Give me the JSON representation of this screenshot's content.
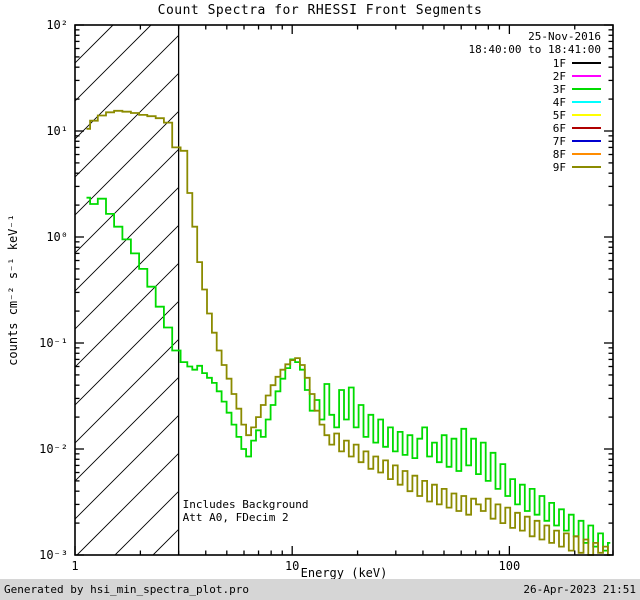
{
  "title": "Count Spectra for RHESSI Front Segments",
  "footer": {
    "left": "Generated by hsi_min_spectra_plot.pro",
    "right": "26-Apr-2023 21:51"
  },
  "chart_data": {
    "type": "line",
    "line_style": "histogram-step",
    "title": "Count Spectra for RHESSI Front Segments",
    "xlabel": "Energy (keV)",
    "ylabel": "counts cm⁻² s⁻¹ keV⁻¹",
    "xscale": "log",
    "yscale": "log",
    "xlim": [
      1,
      300
    ],
    "ylim": [
      0.001,
      100
    ],
    "grid": false,
    "date_line1": "25-Nov-2016",
    "date_line2": "18:40:00 to 18:41:00",
    "date_color": "#8b8b00",
    "annotations": [
      "Includes Background",
      "Att A0, FDecim 2"
    ],
    "hatch_region": {
      "from": 1,
      "to": 3
    },
    "x_axis": {
      "label": "Energy (keV)",
      "ticks": [
        {
          "v": 1,
          "label": "1"
        },
        {
          "v": 10,
          "label": "10"
        },
        {
          "v": 100,
          "label": "100"
        }
      ]
    },
    "y_axis": {
      "label": "counts cm⁻² s⁻¹ keV⁻¹",
      "ticks": [
        {
          "v": 100,
          "label": "10²"
        },
        {
          "v": 10,
          "label": "10¹"
        },
        {
          "v": 1,
          "label": "10⁰"
        },
        {
          "v": 0.1,
          "label": "10⁻¹"
        },
        {
          "v": 0.01,
          "label": "10⁻²"
        },
        {
          "v": 0.001,
          "label": "10⁻³"
        }
      ]
    },
    "legend": [
      {
        "label": "1F",
        "color": "#000000"
      },
      {
        "label": "2F",
        "color": "#ff00ff"
      },
      {
        "label": "3F",
        "color": "#00db00"
      },
      {
        "label": "4F",
        "color": "#00ffff"
      },
      {
        "label": "5F",
        "color": "#ffff00"
      },
      {
        "label": "6F",
        "color": "#b00000"
      },
      {
        "label": "7F",
        "color": "#0000d0"
      },
      {
        "label": "8F",
        "color": "#ff8c00"
      },
      {
        "label": "9F",
        "color": "#8b8b00"
      }
    ],
    "series": [
      {
        "name": "3F",
        "color": "#00db00",
        "points": [
          [
            1.13,
            2.35
          ],
          [
            1.22,
            2.05
          ],
          [
            1.33,
            2.3
          ],
          [
            1.45,
            1.65
          ],
          [
            1.58,
            1.25
          ],
          [
            1.73,
            0.95
          ],
          [
            1.89,
            0.7
          ],
          [
            2.06,
            0.5
          ],
          [
            2.25,
            0.34
          ],
          [
            2.46,
            0.22
          ],
          [
            2.68,
            0.14
          ],
          [
            2.93,
            0.085
          ],
          [
            3.2,
            0.066
          ],
          [
            3.38,
            0.06
          ],
          [
            3.56,
            0.056
          ],
          [
            3.75,
            0.061
          ],
          [
            3.95,
            0.052
          ],
          [
            4.16,
            0.047
          ],
          [
            4.38,
            0.042
          ],
          [
            4.61,
            0.035
          ],
          [
            4.86,
            0.028
          ],
          [
            5.12,
            0.022
          ],
          [
            5.39,
            0.017
          ],
          [
            5.68,
            0.013
          ],
          [
            5.98,
            0.01
          ],
          [
            6.3,
            0.0085
          ],
          [
            6.64,
            0.012
          ],
          [
            6.99,
            0.015
          ],
          [
            7.36,
            0.013
          ],
          [
            7.75,
            0.019
          ],
          [
            8.16,
            0.026
          ],
          [
            8.6,
            0.035
          ],
          [
            9.06,
            0.046
          ],
          [
            9.54,
            0.058
          ],
          [
            10.05,
            0.07
          ],
          [
            10.58,
            0.066
          ],
          [
            11.14,
            0.056
          ],
          [
            11.74,
            0.036
          ],
          [
            12.36,
            0.023
          ],
          [
            13.02,
            0.029
          ],
          [
            13.71,
            0.019
          ],
          [
            14.44,
            0.041
          ],
          [
            15.21,
            0.021
          ],
          [
            16.02,
            0.016
          ],
          [
            16.87,
            0.036
          ],
          [
            17.77,
            0.019
          ],
          [
            18.71,
            0.038
          ],
          [
            19.71,
            0.016
          ],
          [
            20.76,
            0.026
          ],
          [
            21.86,
            0.013
          ],
          [
            23.02,
            0.021
          ],
          [
            24.25,
            0.0115
          ],
          [
            25.54,
            0.019
          ],
          [
            26.9,
            0.0105
          ],
          [
            28.33,
            0.016
          ],
          [
            29.84,
            0.0095
          ],
          [
            31.42,
            0.0145
          ],
          [
            33.1,
            0.0088
          ],
          [
            34.86,
            0.0135
          ],
          [
            36.71,
            0.0082
          ],
          [
            38.67,
            0.0125
          ],
          [
            40.72,
            0.016
          ],
          [
            42.89,
            0.0085
          ],
          [
            45.17,
            0.0115
          ],
          [
            47.57,
            0.0075
          ],
          [
            50.1,
            0.0135
          ],
          [
            52.77,
            0.0068
          ],
          [
            55.57,
            0.0125
          ],
          [
            58.53,
            0.0062
          ],
          [
            61.64,
            0.0155
          ],
          [
            64.92,
            0.007
          ],
          [
            68.37,
            0.0125
          ],
          [
            72.01,
            0.0058
          ],
          [
            75.84,
            0.0115
          ],
          [
            79.87,
            0.005
          ],
          [
            84.12,
            0.0092
          ],
          [
            88.6,
            0.0042
          ],
          [
            93.31,
            0.0072
          ],
          [
            98.27,
            0.0036
          ],
          [
            103.5,
            0.0052
          ],
          [
            109.0,
            0.003
          ],
          [
            114.8,
            0.0046
          ],
          [
            120.9,
            0.0026
          ],
          [
            127.3,
            0.0042
          ],
          [
            134.1,
            0.0024
          ],
          [
            141.2,
            0.0036
          ],
          [
            148.7,
            0.0021
          ],
          [
            156.6,
            0.0031
          ],
          [
            164.9,
            0.0019
          ],
          [
            173.7,
            0.0027
          ],
          [
            182.9,
            0.0017
          ],
          [
            192.7,
            0.0024
          ],
          [
            202.9,
            0.0015
          ],
          [
            213.7,
            0.0021
          ],
          [
            225.1,
            0.0013
          ],
          [
            237.0,
            0.0019
          ],
          [
            249.6,
            0.0012
          ],
          [
            262.9,
            0.0016
          ],
          [
            276.9,
            0.0011
          ],
          [
            291.6,
            0.0013
          ]
        ]
      },
      {
        "name": "9F",
        "color": "#8b8b00",
        "points": [
          [
            1.13,
            10.5
          ],
          [
            1.22,
            12.5
          ],
          [
            1.33,
            14.0
          ],
          [
            1.45,
            15.0
          ],
          [
            1.58,
            15.5
          ],
          [
            1.73,
            15.2
          ],
          [
            1.89,
            14.8
          ],
          [
            2.06,
            14.2
          ],
          [
            2.25,
            13.8
          ],
          [
            2.46,
            13.2
          ],
          [
            2.68,
            12.0
          ],
          [
            2.93,
            7.0
          ],
          [
            3.2,
            6.5
          ],
          [
            3.38,
            2.6
          ],
          [
            3.56,
            1.25
          ],
          [
            3.75,
            0.58
          ],
          [
            3.95,
            0.32
          ],
          [
            4.16,
            0.19
          ],
          [
            4.38,
            0.125
          ],
          [
            4.61,
            0.085
          ],
          [
            4.86,
            0.062
          ],
          [
            5.12,
            0.046
          ],
          [
            5.39,
            0.033
          ],
          [
            5.68,
            0.024
          ],
          [
            5.98,
            0.017
          ],
          [
            6.3,
            0.0135
          ],
          [
            6.64,
            0.016
          ],
          [
            6.99,
            0.02
          ],
          [
            7.36,
            0.026
          ],
          [
            7.75,
            0.032
          ],
          [
            8.16,
            0.04
          ],
          [
            8.6,
            0.048
          ],
          [
            9.06,
            0.056
          ],
          [
            9.54,
            0.063
          ],
          [
            10.05,
            0.069
          ],
          [
            10.58,
            0.072
          ],
          [
            11.14,
            0.062
          ],
          [
            11.74,
            0.047
          ],
          [
            12.36,
            0.033
          ],
          [
            13.02,
            0.023
          ],
          [
            13.71,
            0.017
          ],
          [
            14.44,
            0.0135
          ],
          [
            15.21,
            0.011
          ],
          [
            16.02,
            0.014
          ],
          [
            16.87,
            0.0095
          ],
          [
            17.77,
            0.012
          ],
          [
            18.71,
            0.0085
          ],
          [
            19.71,
            0.011
          ],
          [
            20.76,
            0.0075
          ],
          [
            21.86,
            0.0095
          ],
          [
            23.02,
            0.0065
          ],
          [
            24.25,
            0.0085
          ],
          [
            25.54,
            0.006
          ],
          [
            26.9,
            0.0078
          ],
          [
            28.33,
            0.0052
          ],
          [
            29.84,
            0.007
          ],
          [
            31.42,
            0.0046
          ],
          [
            33.1,
            0.0062
          ],
          [
            34.86,
            0.004
          ],
          [
            36.71,
            0.0056
          ],
          [
            38.67,
            0.0036
          ],
          [
            40.72,
            0.005
          ],
          [
            42.89,
            0.0032
          ],
          [
            45.17,
            0.0046
          ],
          [
            47.57,
            0.003
          ],
          [
            50.1,
            0.0042
          ],
          [
            52.77,
            0.0028
          ],
          [
            55.57,
            0.0038
          ],
          [
            58.53,
            0.0026
          ],
          [
            61.64,
            0.0036
          ],
          [
            64.92,
            0.0024
          ],
          [
            68.37,
            0.0034
          ],
          [
            72.01,
            0.003
          ],
          [
            75.84,
            0.0026
          ],
          [
            79.87,
            0.0034
          ],
          [
            84.12,
            0.0022
          ],
          [
            88.6,
            0.003
          ],
          [
            93.31,
            0.002
          ],
          [
            98.27,
            0.0028
          ],
          [
            103.5,
            0.0018
          ],
          [
            109.0,
            0.0025
          ],
          [
            114.8,
            0.0017
          ],
          [
            120.9,
            0.0023
          ],
          [
            127.3,
            0.0015
          ],
          [
            134.1,
            0.0021
          ],
          [
            141.2,
            0.0014
          ],
          [
            148.7,
            0.0019
          ],
          [
            156.6,
            0.0013
          ],
          [
            164.9,
            0.0017
          ],
          [
            173.7,
            0.0012
          ],
          [
            182.9,
            0.0016
          ],
          [
            192.7,
            0.0011
          ],
          [
            202.9,
            0.0015
          ],
          [
            213.7,
            0.00105
          ],
          [
            225.1,
            0.0014
          ],
          [
            237.0,
            0.001
          ],
          [
            249.6,
            0.0013
          ],
          [
            262.9,
            0.00105
          ],
          [
            276.9,
            0.0012
          ],
          [
            291.6,
            0.001
          ]
        ]
      }
    ]
  }
}
